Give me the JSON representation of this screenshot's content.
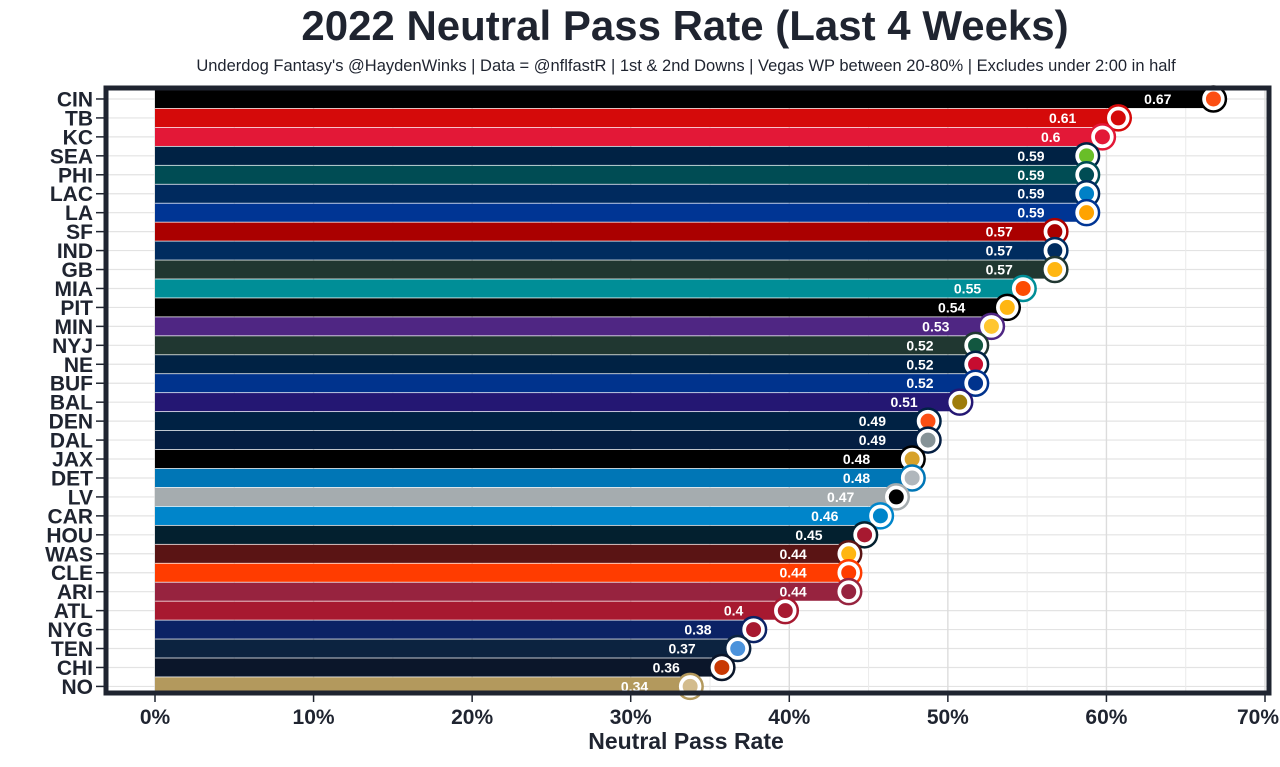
{
  "chart_data": {
    "type": "bar",
    "orientation": "horizontal",
    "title": "2022 Neutral Pass Rate (Last 4 Weeks)",
    "subtitle": "Underdog Fantasy's @HaydenWinks | Data = @nflfastR | 1st & 2nd Downs | Vegas WP between 20-80% | Excludes under 2:00 in half",
    "xlabel": "Neutral Pass Rate",
    "ylabel": "",
    "xlim": [
      0,
      0.7
    ],
    "xticks": [
      0,
      0.1,
      0.2,
      0.3,
      0.4,
      0.5,
      0.6,
      0.7
    ],
    "xtick_labels": [
      "0%",
      "10%",
      "20%",
      "30%",
      "40%",
      "50%",
      "60%",
      "70%"
    ],
    "grid": true,
    "categories": [
      "CIN",
      "TB",
      "KC",
      "SEA",
      "PHI",
      "LAC",
      "LA",
      "SF",
      "IND",
      "GB",
      "MIA",
      "PIT",
      "MIN",
      "NYJ",
      "NE",
      "BUF",
      "BAL",
      "DEN",
      "DAL",
      "JAX",
      "DET",
      "LV",
      "CAR",
      "HOU",
      "WAS",
      "CLE",
      "ARI",
      "ATL",
      "NYG",
      "TEN",
      "CHI",
      "NO"
    ],
    "values": [
      0.67,
      0.61,
      0.6,
      0.59,
      0.59,
      0.59,
      0.59,
      0.57,
      0.57,
      0.57,
      0.55,
      0.54,
      0.53,
      0.52,
      0.52,
      0.52,
      0.51,
      0.49,
      0.49,
      0.48,
      0.48,
      0.47,
      0.46,
      0.45,
      0.44,
      0.44,
      0.44,
      0.4,
      0.38,
      0.37,
      0.36,
      0.34
    ],
    "value_labels": [
      "0.67",
      "0.61",
      "0.6",
      "0.59",
      "0.59",
      "0.59",
      "0.59",
      "0.57",
      "0.57",
      "0.57",
      "0.55",
      "0.54",
      "0.53",
      "0.52",
      "0.52",
      "0.52",
      "0.51",
      "0.49",
      "0.49",
      "0.48",
      "0.48",
      "0.47",
      "0.46",
      "0.45",
      "0.44",
      "0.44",
      "0.44",
      "0.4",
      "0.38",
      "0.37",
      "0.36",
      "0.34"
    ],
    "colors": [
      "#000000",
      "#d50a0a",
      "#e31837",
      "#002244",
      "#004c54",
      "#002a5e",
      "#003594",
      "#aa0000",
      "#002c5f",
      "#203731",
      "#008e97",
      "#000000",
      "#4f2683",
      "#203731",
      "#002244",
      "#00338d",
      "#241773",
      "#002244",
      "#041e42",
      "#000000",
      "#0076b6",
      "#a5acaf",
      "#0085ca",
      "#03202f",
      "#5a1414",
      "#ff3c00",
      "#97233f",
      "#a71930",
      "#0b2265",
      "#0c2340",
      "#0b162a",
      "#b3995d"
    ],
    "logo_colors": [
      "#fb4f14",
      "#d50a0a",
      "#e31837",
      "#69be28",
      "#004c54",
      "#0080c6",
      "#ffa300",
      "#aa0000",
      "#002c5f",
      "#ffb612",
      "#fc4c02",
      "#ffb612",
      "#ffc62f",
      "#125740",
      "#c60c30",
      "#00338d",
      "#9e7c0c",
      "#fb4f14",
      "#869397",
      "#d7a22a",
      "#b0b7bc",
      "#000000",
      "#0085ca",
      "#a71930",
      "#ffb612",
      "#ff3c00",
      "#97233f",
      "#a71930",
      "#a71930",
      "#4b92db",
      "#c83803",
      "#d3bc8d"
    ]
  }
}
